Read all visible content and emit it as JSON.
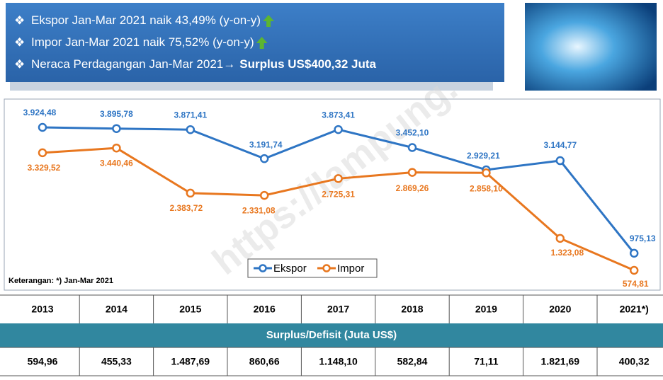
{
  "header": {
    "items": [
      {
        "text": "Ekspor Jan-Mar 2021 naik 43,49% (y-on-y)"
      },
      {
        "text": "Impor Jan-Mar 2021 naik 75,52% (y-on-y)"
      },
      {
        "text": "Neraca Perdagangan Jan-Mar 2021→",
        "bold": "Surplus US$400,32 Juta"
      }
    ]
  },
  "note": "Keterangan: *) Jan-Mar 2021",
  "chart_data": {
    "type": "line",
    "categories": [
      "2013",
      "2014",
      "2015",
      "2016",
      "2017",
      "2018",
      "2019",
      "2020",
      "2021*)"
    ],
    "series": [
      {
        "name": "Ekspor",
        "color": "#2e75c4",
        "values": [
          3924.48,
          3895.78,
          3871.41,
          3191.74,
          3873.41,
          3452.1,
          2929.21,
          3144.77,
          975.13
        ],
        "value_labels": [
          "3.924,48",
          "3.895,78",
          "3.871,41",
          "3.191,74",
          "3.873,41",
          "3.452,10",
          "2.929,21",
          "3.144,77",
          "975,13"
        ]
      },
      {
        "name": "Impor",
        "color": "#e8771f",
        "values": [
          3329.52,
          3440.46,
          2383.72,
          2331.08,
          2725.31,
          2869.26,
          2858.1,
          1323.08,
          574.81
        ],
        "value_labels": [
          "3.329,52",
          "3.440,46",
          "2.383,72",
          "2.331,08",
          "2.725,31",
          "2.869,26",
          "2.858,10",
          "1.323,08",
          "574,81"
        ]
      }
    ]
  },
  "table": {
    "title": "Surplus/Defisit (Juta US$)",
    "values": [
      "594,96",
      "455,33",
      "1.487,69",
      "860,66",
      "1.148,10",
      "582,84",
      "71,11",
      "1.821,69",
      "400,32"
    ]
  }
}
